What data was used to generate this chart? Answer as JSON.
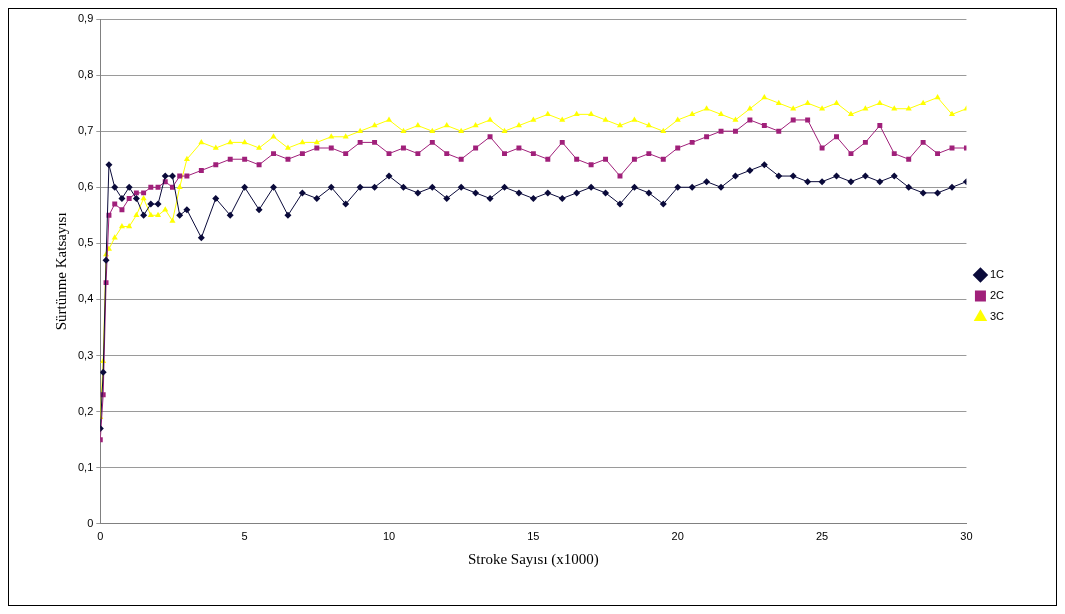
{
  "chart_data": {
    "type": "line",
    "xlabel": "Stroke Sayısı (x1000)",
    "ylabel": "Sürtünme Katsayısı",
    "x": [
      0,
      0.1,
      0.2,
      0.3,
      0.5,
      0.75,
      1,
      1.25,
      1.5,
      1.75,
      2,
      2.25,
      2.5,
      2.75,
      3,
      3.5,
      4,
      4.5,
      5,
      5.5,
      6,
      6.5,
      7,
      7.5,
      8,
      8.5,
      9,
      9.5,
      10,
      10.5,
      11,
      11.5,
      12,
      12.5,
      13,
      13.5,
      14,
      14.5,
      15,
      15.5,
      16,
      16.5,
      17,
      17.5,
      18,
      18.5,
      19,
      19.5,
      20,
      20.5,
      21,
      21.5,
      22,
      22.5,
      23,
      23.5,
      24,
      24.5,
      25,
      25.5,
      26,
      26.5,
      27,
      27.5,
      28,
      28.5,
      29,
      29.5,
      30
    ],
    "series": [
      {
        "name": "1C",
        "color": "#0a0a3a",
        "marker": "diamond",
        "values": [
          0.17,
          0.27,
          0.47,
          0.64,
          0.6,
          0.58,
          0.6,
          0.58,
          0.55,
          0.57,
          0.57,
          0.62,
          0.62,
          0.55,
          0.56,
          0.51,
          0.58,
          0.55,
          0.6,
          0.56,
          0.6,
          0.55,
          0.59,
          0.58,
          0.6,
          0.57,
          0.6,
          0.6,
          0.62,
          0.6,
          0.59,
          0.6,
          0.58,
          0.6,
          0.59,
          0.58,
          0.6,
          0.59,
          0.58,
          0.59,
          0.58,
          0.59,
          0.6,
          0.59,
          0.57,
          0.6,
          0.59,
          0.57,
          0.6,
          0.6,
          0.61,
          0.6,
          0.62,
          0.63,
          0.64,
          0.62,
          0.62,
          0.61,
          0.61,
          0.62,
          0.61,
          0.62,
          0.61,
          0.62,
          0.6,
          0.59,
          0.59,
          0.6,
          0.61
        ]
      },
      {
        "name": "2C",
        "color": "#a0207a",
        "marker": "square",
        "values": [
          0.15,
          0.23,
          0.43,
          0.55,
          0.57,
          0.56,
          0.58,
          0.59,
          0.59,
          0.6,
          0.6,
          0.61,
          0.6,
          0.62,
          0.62,
          0.63,
          0.64,
          0.65,
          0.65,
          0.64,
          0.66,
          0.65,
          0.66,
          0.67,
          0.67,
          0.66,
          0.68,
          0.68,
          0.66,
          0.67,
          0.66,
          0.68,
          0.66,
          0.65,
          0.67,
          0.69,
          0.66,
          0.67,
          0.66,
          0.65,
          0.68,
          0.65,
          0.64,
          0.65,
          0.62,
          0.65,
          0.66,
          0.65,
          0.67,
          0.68,
          0.69,
          0.7,
          0.7,
          0.72,
          0.71,
          0.7,
          0.72,
          0.72,
          0.67,
          0.69,
          0.66,
          0.68,
          0.71,
          0.66,
          0.65,
          0.68,
          0.66,
          0.67,
          0.67
        ]
      },
      {
        "name": "3C",
        "color": "#ffff00",
        "marker": "triangle",
        "values": [
          0.19,
          0.29,
          0.48,
          0.49,
          0.51,
          0.53,
          0.53,
          0.55,
          0.58,
          0.55,
          0.55,
          0.56,
          0.54,
          0.6,
          0.65,
          0.68,
          0.67,
          0.68,
          0.68,
          0.67,
          0.69,
          0.67,
          0.68,
          0.68,
          0.69,
          0.69,
          0.7,
          0.71,
          0.72,
          0.7,
          0.71,
          0.7,
          0.71,
          0.7,
          0.71,
          0.72,
          0.7,
          0.71,
          0.72,
          0.73,
          0.72,
          0.73,
          0.73,
          0.72,
          0.71,
          0.72,
          0.71,
          0.7,
          0.72,
          0.73,
          0.74,
          0.73,
          0.72,
          0.74,
          0.76,
          0.75,
          0.74,
          0.75,
          0.74,
          0.75,
          0.73,
          0.74,
          0.75,
          0.74,
          0.74,
          0.75,
          0.76,
          0.73,
          0.74
        ]
      }
    ],
    "xlim": [
      0,
      30
    ],
    "xticks": [
      0,
      5,
      10,
      15,
      20,
      25,
      30
    ],
    "ylim": [
      0,
      0.9
    ],
    "yticks": [
      0,
      {
        "value": 0.1,
        "label": "0,1"
      },
      {
        "value": 0.2,
        "label": "0,2"
      },
      {
        "value": 0.3,
        "label": "0,3"
      },
      {
        "value": 0.4,
        "label": "0,4"
      },
      {
        "value": 0.5,
        "label": "0,5"
      },
      {
        "value": 0.6,
        "label": "0,6"
      },
      {
        "value": 0.7,
        "label": "0,7"
      },
      {
        "value": 0.8,
        "label": "0,8"
      },
      {
        "value": 0.9,
        "label": "0,9"
      }
    ],
    "grid": "y",
    "legend": "right",
    "line_style": "solid"
  }
}
